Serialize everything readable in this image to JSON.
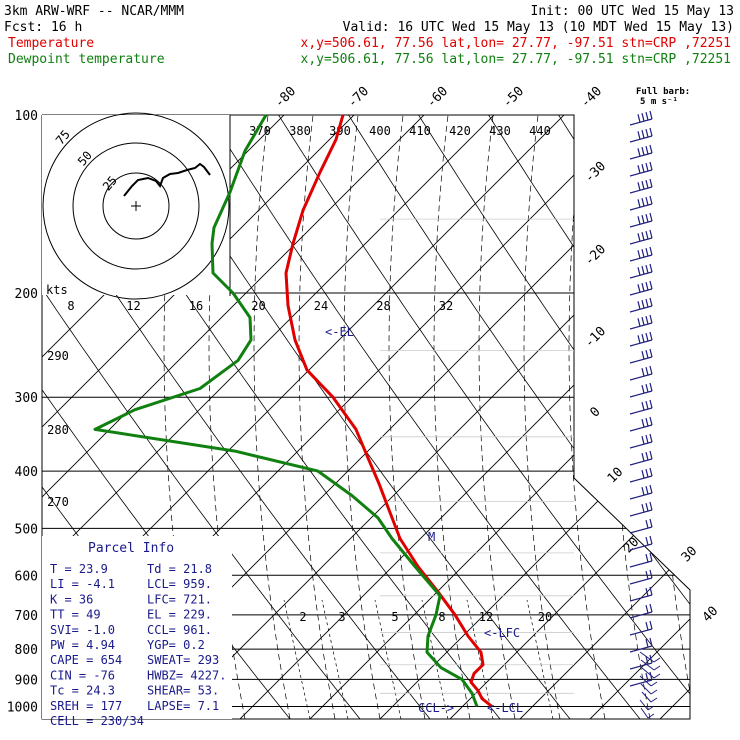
{
  "header": {
    "model": "3km ARW-WRF -- NCAR/MMM",
    "init": "Init: 00 UTC Wed 15 May 13",
    "fcst": "Fcst:   16 h",
    "valid": "Valid: 16 UTC Wed 15 May 13 (10 MDT Wed 15 May 13)",
    "temp_label": "Temperature",
    "temp_info": "x,y=506.61, 77.56   lat,lon= 27.77, -97.51   stn=CRP ,72251",
    "dew_label": "Dewpoint temperature",
    "dew_info": "x,y=506.61, 77.56   lat,lon= 27.77, -97.51   stn=CRP ,72251",
    "barb_note_1": "Full barb:",
    "barb_note_2": "5 m s⁻¹"
  },
  "chart_data": {
    "type": "line",
    "pressure_levels": [
      100,
      200,
      300,
      400,
      500,
      600,
      700,
      800,
      900,
      1000
    ],
    "pressure_labels": [
      "100",
      "200",
      "300",
      "400",
      "500",
      "600",
      "700",
      "800",
      "900",
      "1000"
    ],
    "isotherm_labels": [
      "-80",
      "-70",
      "-60",
      "-50",
      "-40",
      "-30",
      "-20",
      "-10",
      "0",
      "10",
      "20",
      "30",
      "40"
    ],
    "theta_labels": [
      "370",
      "380",
      "390",
      "400",
      "410",
      "420",
      "430",
      "440"
    ],
    "theta_side_labels": [
      "290",
      "280",
      "270"
    ],
    "mixing_ratio_labels": [
      "2",
      "3",
      "5",
      "8",
      "12",
      "20"
    ],
    "series": [
      {
        "name": "Temperature",
        "color": "#e00000",
        "points": [
          {
            "p": 100,
            "x": 343
          },
          {
            "p": 110,
            "x": 336
          },
          {
            "p": 125,
            "x": 320
          },
          {
            "p": 145,
            "x": 303
          },
          {
            "p": 165,
            "x": 293
          },
          {
            "p": 185,
            "x": 286
          },
          {
            "p": 210,
            "x": 288
          },
          {
            "p": 240,
            "x": 295
          },
          {
            "p": 270,
            "x": 307
          },
          {
            "p": 300,
            "x": 333
          },
          {
            "p": 340,
            "x": 356
          },
          {
            "p": 380,
            "x": 368
          },
          {
            "p": 420,
            "x": 379
          },
          {
            "p": 470,
            "x": 390
          },
          {
            "p": 520,
            "x": 400
          },
          {
            "p": 580,
            "x": 418
          },
          {
            "p": 640,
            "x": 438
          },
          {
            "p": 700,
            "x": 455
          },
          {
            "p": 760,
            "x": 468
          },
          {
            "p": 810,
            "x": 481
          },
          {
            "p": 850,
            "x": 483
          },
          {
            "p": 880,
            "x": 474
          },
          {
            "p": 910,
            "x": 471
          },
          {
            "p": 940,
            "x": 478
          },
          {
            "p": 970,
            "x": 482
          },
          {
            "p": 1000,
            "x": 492
          }
        ]
      },
      {
        "name": "Dewpoint temperature",
        "color": "#108010",
        "points": [
          {
            "p": 100,
            "x": 266
          },
          {
            "p": 115,
            "x": 245
          },
          {
            "p": 135,
            "x": 230
          },
          {
            "p": 155,
            "x": 214
          },
          {
            "p": 165,
            "x": 212
          },
          {
            "p": 185,
            "x": 213
          },
          {
            "p": 200,
            "x": 233
          },
          {
            "p": 220,
            "x": 250
          },
          {
            "p": 240,
            "x": 251
          },
          {
            "p": 260,
            "x": 238
          },
          {
            "p": 290,
            "x": 200
          },
          {
            "p": 315,
            "x": 135
          },
          {
            "p": 340,
            "x": 95
          },
          {
            "p": 370,
            "x": 235
          },
          {
            "p": 400,
            "x": 318
          },
          {
            "p": 440,
            "x": 352
          },
          {
            "p": 480,
            "x": 378
          },
          {
            "p": 520,
            "x": 392
          },
          {
            "p": 580,
            "x": 415
          },
          {
            "p": 650,
            "x": 440
          },
          {
            "p": 700,
            "x": 436
          },
          {
            "p": 760,
            "x": 428
          },
          {
            "p": 810,
            "x": 427
          },
          {
            "p": 860,
            "x": 441
          },
          {
            "p": 900,
            "x": 462
          },
          {
            "p": 950,
            "x": 472
          },
          {
            "p": 1000,
            "x": 477
          }
        ]
      }
    ],
    "annotations": [
      "<-EL",
      "<-LFC",
      "<-LCL",
      "CCL->",
      "M"
    ],
    "hodograph": {
      "rings": [
        "25",
        "50",
        "75"
      ],
      "units": "kts",
      "speed_labels": [
        "8",
        "12",
        "16",
        "20",
        "24",
        "28",
        "32"
      ]
    }
  },
  "parcel_info": {
    "title": "Parcel Info",
    "rows": [
      {
        "left": "T  =    23.9",
        "right": "Td =  21.8"
      },
      {
        "left": "LI =    -4.1",
        "right": "LCL=  959."
      },
      {
        "left": "K  =      36",
        "right": "LFC=  721."
      },
      {
        "left": "TT =      49",
        "right": "EL =  229."
      },
      {
        "left": "SVI=    -1.0",
        "right": "CCL=  961."
      },
      {
        "left": "PW =    4.94",
        "right": "YGP=   0.2"
      },
      {
        "left": "CAPE =   654",
        "right": "SWEAT=  293"
      },
      {
        "left": "CIN  =   -76",
        "right": "HWBZ= 4227."
      },
      {
        "left": "Tc   =  24.3",
        "right": "SHEAR=  53."
      },
      {
        "left": "SREH =   177",
        "right": "LAPSE=  7.1"
      },
      {
        "left": "CELL = 230/34",
        "right": ""
      }
    ]
  }
}
